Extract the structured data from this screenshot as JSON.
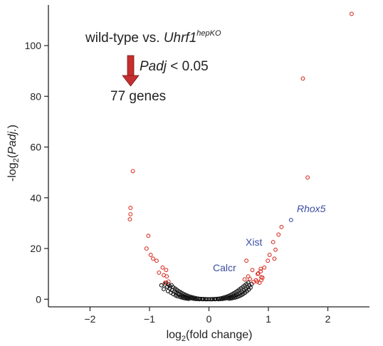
{
  "chart_data": {
    "type": "scatter",
    "title": "",
    "xlabel_parts": [
      "log",
      "2",
      "(fold change)"
    ],
    "ylabel_parts": [
      "-log",
      "2",
      "(",
      "Padj.",
      ")"
    ],
    "xlim": [
      -2.7,
      2.7
    ],
    "ylim": [
      -3,
      116
    ],
    "xticks": [
      -2,
      -1,
      0,
      1,
      2
    ],
    "xtick_labels": [
      "−2",
      "−1",
      "0",
      "1",
      "2"
    ],
    "yticks": [
      0,
      20,
      40,
      60,
      80,
      100
    ],
    "ytick_labels": [
      "0",
      "20",
      "40",
      "60",
      "80",
      "100"
    ],
    "grid": false,
    "annotation": {
      "comparison_prefix": "wild-type vs. ",
      "gene_italic": "Uhrf1",
      "gene_superscript": "hepKO",
      "threshold_italic": "Padj",
      "threshold_rest": " < 0.05",
      "result": "77 genes",
      "arrow_color": "#c62f2f"
    },
    "colors": {
      "significant": "#d9352b",
      "nonsignificant": "#111111",
      "highlight": "#3b4ea0"
    },
    "labeled_genes": [
      {
        "name": "Rhox5",
        "italic": true
      },
      {
        "name": "Xist",
        "italic": false
      },
      {
        "name": "Calcr",
        "italic": false
      }
    ],
    "series": [
      {
        "status": "significant",
        "points": [
          [
            2.4,
            112.5
          ],
          [
            1.58,
            87
          ],
          [
            1.66,
            48
          ],
          [
            -1.28,
            50.5
          ],
          [
            -1.32,
            36
          ],
          [
            -1.33,
            31.5
          ],
          [
            -1.32,
            33.5
          ],
          [
            1.22,
            28.5
          ],
          [
            1.17,
            25.5
          ],
          [
            1.08,
            22.5
          ],
          [
            1.12,
            19.5
          ],
          [
            1.02,
            17.5
          ],
          [
            1.1,
            16
          ],
          [
            0.99,
            15.2
          ],
          [
            0.63,
            15.2
          ],
          [
            -1.02,
            25
          ],
          [
            -1.05,
            20
          ],
          [
            -0.98,
            17.5
          ],
          [
            -0.94,
            16
          ],
          [
            -0.88,
            15.2
          ],
          [
            -0.78,
            12.5
          ],
          [
            -0.72,
            11.5
          ],
          [
            -0.84,
            10.5
          ],
          [
            -0.76,
            9.5
          ],
          [
            -0.71,
            9
          ],
          [
            -0.68,
            7
          ],
          [
            -0.74,
            6.5
          ],
          [
            0.73,
            11.5
          ],
          [
            0.66,
            9
          ],
          [
            0.69,
            8
          ],
          [
            0.79,
            7.5
          ],
          [
            0.83,
            10.2
          ],
          [
            0.87,
            11
          ],
          [
            0.88,
            8.7
          ],
          [
            0.9,
            8.5
          ],
          [
            0.85,
            6.5
          ],
          [
            0.81,
            7
          ],
          [
            0.75,
            6.8
          ],
          [
            0.93,
            12.5
          ],
          [
            0.87,
            12
          ],
          [
            0.82,
            10
          ],
          [
            0.6,
            7.8
          ],
          [
            0.88,
            7.5
          ]
        ]
      },
      {
        "status": "highlight",
        "points": [
          [
            1.38,
            31.2
          ]
        ]
      },
      {
        "status": "nonsignificant",
        "points": [
          [
            -0.72,
            6.5
          ],
          [
            -0.68,
            5.8
          ],
          [
            -0.66,
            5.2
          ],
          [
            -0.63,
            5.6
          ],
          [
            -0.6,
            4.7
          ],
          [
            -0.57,
            4.2
          ],
          [
            -0.54,
            3.7
          ],
          [
            -0.51,
            3.2
          ],
          [
            -0.48,
            2.8
          ],
          [
            -0.45,
            2.4
          ],
          [
            -0.42,
            2.0
          ],
          [
            -0.39,
            1.7
          ],
          [
            -0.36,
            1.4
          ],
          [
            -0.33,
            1.1
          ],
          [
            -0.3,
            0.9
          ],
          [
            -0.27,
            0.7
          ],
          [
            -0.24,
            0.5
          ],
          [
            -0.21,
            0.35
          ],
          [
            -0.18,
            0.25
          ],
          [
            -0.15,
            0.15
          ],
          [
            -0.12,
            0.1
          ],
          [
            -0.09,
            0.05
          ],
          [
            -0.06,
            0.02
          ],
          [
            -0.03,
            0.01
          ],
          [
            0.0,
            0.0
          ],
          [
            0.03,
            0.01
          ],
          [
            0.06,
            0.03
          ],
          [
            0.09,
            0.06
          ],
          [
            0.12,
            0.1
          ],
          [
            0.15,
            0.16
          ],
          [
            0.18,
            0.25
          ],
          [
            0.21,
            0.4
          ],
          [
            0.24,
            0.6
          ],
          [
            0.27,
            0.8
          ],
          [
            0.3,
            1.0
          ],
          [
            0.33,
            1.3
          ],
          [
            0.36,
            1.6
          ],
          [
            0.39,
            2.0
          ],
          [
            0.42,
            2.4
          ],
          [
            0.45,
            2.8
          ],
          [
            0.48,
            3.3
          ],
          [
            0.51,
            3.8
          ],
          [
            0.54,
            4.3
          ],
          [
            0.57,
            4.9
          ],
          [
            0.6,
            5.4
          ],
          [
            0.63,
            6.0
          ],
          [
            0.66,
            6.6
          ],
          [
            -0.7,
            4.9
          ],
          [
            -0.66,
            4.3
          ],
          [
            -0.62,
            3.6
          ],
          [
            -0.58,
            3.0
          ],
          [
            -0.55,
            2.6
          ],
          [
            -0.52,
            2.1
          ],
          [
            -0.5,
            1.8
          ],
          [
            -0.47,
            1.5
          ],
          [
            -0.44,
            1.2
          ],
          [
            -0.41,
            1.0
          ],
          [
            -0.38,
            0.8
          ],
          [
            -0.35,
            0.6
          ],
          [
            -0.32,
            0.45
          ],
          [
            -0.29,
            0.33
          ],
          [
            -0.26,
            0.22
          ],
          [
            -0.23,
            0.12
          ],
          [
            0.23,
            0.15
          ],
          [
            0.26,
            0.25
          ],
          [
            0.29,
            0.35
          ],
          [
            0.32,
            0.5
          ],
          [
            0.35,
            0.7
          ],
          [
            0.38,
            0.9
          ],
          [
            0.41,
            1.1
          ],
          [
            0.44,
            1.4
          ],
          [
            0.47,
            1.7
          ],
          [
            0.5,
            2.1
          ],
          [
            0.53,
            2.5
          ],
          [
            0.56,
            3.0
          ],
          [
            0.59,
            3.6
          ],
          [
            0.62,
            4.2
          ],
          [
            0.65,
            4.8
          ],
          [
            0.68,
            5.4
          ],
          [
            -0.74,
            5.8
          ],
          [
            -0.69,
            3.2
          ],
          [
            -0.64,
            2.6
          ],
          [
            -0.6,
            2.0
          ],
          [
            -0.56,
            1.5
          ],
          [
            -0.53,
            1.2
          ],
          [
            -0.49,
            0.9
          ],
          [
            -0.46,
            0.7
          ],
          [
            -0.43,
            0.5
          ],
          [
            -0.4,
            0.35
          ],
          [
            -0.37,
            0.25
          ],
          [
            -0.34,
            0.15
          ],
          [
            0.34,
            0.2
          ],
          [
            0.37,
            0.3
          ],
          [
            0.4,
            0.45
          ],
          [
            0.43,
            0.6
          ],
          [
            0.46,
            0.8
          ],
          [
            0.49,
            1.0
          ],
          [
            0.52,
            1.3
          ],
          [
            0.55,
            1.7
          ],
          [
            0.58,
            2.1
          ],
          [
            0.61,
            2.6
          ],
          [
            0.64,
            3.2
          ],
          [
            0.67,
            3.8
          ],
          [
            0.7,
            4.6
          ],
          [
            -0.76,
            4.0
          ],
          [
            -0.8,
            5.5
          ],
          [
            0.72,
            6.0
          ],
          [
            -0.1,
            0.0
          ],
          [
            -0.05,
            0.0
          ],
          [
            0.05,
            0.0
          ],
          [
            0.1,
            0.0
          ],
          [
            -0.2,
            0.05
          ],
          [
            0.2,
            0.05
          ],
          [
            -0.16,
            0.0
          ],
          [
            0.16,
            0.0
          ]
        ]
      }
    ]
  }
}
